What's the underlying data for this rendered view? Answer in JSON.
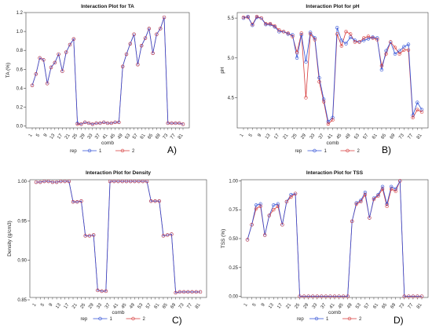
{
  "chart_data": [
    {
      "type": "line",
      "panel_label": "A)",
      "title": "Interaction Plot for TA",
      "xlabel": "comb",
      "ylabel": "TA (%)",
      "ylim": [
        -0.02,
        1.2
      ],
      "yticks": [
        "0.0",
        "0.2",
        "0.4",
        "0.6",
        "0.8",
        "1.0",
        "1.2"
      ],
      "ytick_values": [
        0.0,
        0.2,
        0.4,
        0.6,
        0.8,
        1.0,
        1.2
      ],
      "categories": [
        "1",
        "3",
        "5",
        "7",
        "9",
        "11",
        "13",
        "15",
        "17",
        "19",
        "21",
        "23",
        "25",
        "27",
        "29",
        "31",
        "33",
        "35",
        "37",
        "39",
        "41",
        "43",
        "45",
        "47",
        "49",
        "51",
        "53",
        "55",
        "57",
        "59",
        "61",
        "63",
        "65",
        "67",
        "69",
        "71",
        "73",
        "75",
        "77",
        "79",
        "81"
      ],
      "x_tick_labels": [
        "1",
        "5",
        "9",
        "13",
        "17",
        "21",
        "25",
        "29",
        "33",
        "37",
        "41",
        "45",
        "49",
        "53",
        "57",
        "61",
        "65",
        "69",
        "73",
        "77",
        "81"
      ],
      "grid": false,
      "legend": {
        "title": "rep",
        "placement": "bottom",
        "entries": [
          "1",
          "2"
        ]
      },
      "series": [
        {
          "name": "1",
          "color": "#2f4fd6",
          "values": [
            0.43,
            0.55,
            0.72,
            0.7,
            0.45,
            0.62,
            0.67,
            0.76,
            0.58,
            0.78,
            0.86,
            0.92,
            0.03,
            0.02,
            0.04,
            0.03,
            0.02,
            0.03,
            0.03,
            0.04,
            0.03,
            0.03,
            0.04,
            0.04,
            0.63,
            0.76,
            0.87,
            0.97,
            0.65,
            0.85,
            0.93,
            1.03,
            0.77,
            0.97,
            1.03,
            1.15,
            0.03,
            0.03,
            0.03,
            0.03,
            0.02
          ]
        },
        {
          "name": "2",
          "color": "#d63a3a",
          "values": [
            0.43,
            0.55,
            0.72,
            0.7,
            0.45,
            0.62,
            0.67,
            0.76,
            0.58,
            0.78,
            0.86,
            0.92,
            0.02,
            0.02,
            0.04,
            0.03,
            0.02,
            0.03,
            0.03,
            0.04,
            0.03,
            0.03,
            0.04,
            0.04,
            0.63,
            0.76,
            0.87,
            0.97,
            0.65,
            0.85,
            0.93,
            1.03,
            0.77,
            0.97,
            1.03,
            1.15,
            0.03,
            0.03,
            0.03,
            0.03,
            0.02
          ]
        }
      ]
    },
    {
      "type": "line",
      "panel_label": "B)",
      "title": "Interaction Plot for pH",
      "xlabel": "comb",
      "ylabel": "pH",
      "ylim": [
        4.12,
        5.57
      ],
      "yticks": [
        "4.5",
        "5.0",
        "5.5"
      ],
      "ytick_values": [
        4.5,
        5.0,
        5.5
      ],
      "categories": [
        "1",
        "3",
        "5",
        "7",
        "9",
        "11",
        "13",
        "15",
        "17",
        "19",
        "21",
        "23",
        "25",
        "27",
        "29",
        "31",
        "33",
        "35",
        "37",
        "39",
        "41",
        "43",
        "45",
        "47",
        "49",
        "51",
        "53",
        "55",
        "57",
        "59",
        "61",
        "63",
        "65",
        "67",
        "69",
        "71",
        "73",
        "75",
        "77",
        "79",
        "81"
      ],
      "x_tick_labels": [
        "1",
        "5",
        "9",
        "13",
        "17",
        "21",
        "25",
        "29",
        "33",
        "37",
        "41",
        "45",
        "49",
        "53",
        "57",
        "61",
        "65",
        "69",
        "73",
        "77",
        "81"
      ],
      "grid": false,
      "legend": {
        "title": "rep",
        "placement": "bottom",
        "entries": [
          "1",
          "2"
        ]
      },
      "series": [
        {
          "name": "1",
          "color": "#2f4fd6",
          "values": [
            5.5,
            5.52,
            5.41,
            5.51,
            5.5,
            5.42,
            5.42,
            5.39,
            5.33,
            5.33,
            5.3,
            5.29,
            5.0,
            5.29,
            4.95,
            5.32,
            5.25,
            4.75,
            4.48,
            4.2,
            4.25,
            5.38,
            5.22,
            5.18,
            5.26,
            5.22,
            5.2,
            5.22,
            5.24,
            5.26,
            5.25,
            4.85,
            5.09,
            5.2,
            5.05,
            5.09,
            5.14,
            5.17,
            4.28,
            4.44,
            4.35
          ]
        },
        {
          "name": "2",
          "color": "#d63a3a",
          "values": [
            5.51,
            5.51,
            5.42,
            5.52,
            5.5,
            5.43,
            5.43,
            5.4,
            5.35,
            5.33,
            5.31,
            5.27,
            5.07,
            5.31,
            4.5,
            5.3,
            5.23,
            4.7,
            4.45,
            4.17,
            4.22,
            5.3,
            5.15,
            5.33,
            5.3,
            5.2,
            5.2,
            5.25,
            5.27,
            5.25,
            5.23,
            4.9,
            5.05,
            5.2,
            5.13,
            5.05,
            5.1,
            5.1,
            4.25,
            4.35,
            4.32
          ]
        }
      ]
    },
    {
      "type": "line",
      "panel_label": "C)",
      "title": "Interaction Plot for Density",
      "xlabel": "comb",
      "ylabel": "Density  (g/cm3)",
      "ylim": [
        0.853,
        1.002
      ],
      "yticks": [
        "0.85",
        "0.90",
        "0.95",
        "1.00"
      ],
      "ytick_values": [
        0.85,
        0.9,
        0.95,
        1.0
      ],
      "categories": [
        "1",
        "3",
        "5",
        "7",
        "9",
        "11",
        "13",
        "15",
        "17",
        "19",
        "21",
        "23",
        "25",
        "27",
        "29",
        "31",
        "33",
        "35",
        "37",
        "39",
        "41",
        "43",
        "45",
        "47",
        "49",
        "51",
        "53",
        "55",
        "57",
        "59",
        "61",
        "63",
        "65",
        "67",
        "69",
        "71",
        "73",
        "75",
        "77",
        "79",
        "81"
      ],
      "x_tick_labels": [
        "1",
        "5",
        "9",
        "13",
        "17",
        "21",
        "25",
        "29",
        "33",
        "37",
        "41",
        "45",
        "49",
        "53",
        "57",
        "61",
        "65",
        "69",
        "73",
        "77",
        "81"
      ],
      "grid": false,
      "legend": {
        "title": "rep",
        "placement": "bottom",
        "entries": [
          "1",
          "2"
        ]
      },
      "series": [
        {
          "name": "1",
          "color": "#2f4fd6",
          "values": [
            0.999,
            0.999,
            1.0,
            1.0,
            0.999,
            0.999,
            1.0,
            1.0,
            1.0,
            0.974,
            0.974,
            0.975,
            0.931,
            0.931,
            0.932,
            0.862,
            0.861,
            0.861,
            1.0,
            1.0,
            1.0,
            1.0,
            1.0,
            1.0,
            1.0,
            1.0,
            1.0,
            1.0,
            0.975,
            0.975,
            0.975,
            0.931,
            0.932,
            0.933,
            0.859,
            0.86,
            0.86,
            0.86,
            0.86,
            0.86,
            0.86
          ]
        },
        {
          "name": "2",
          "color": "#d63a3a",
          "values": [
            0.999,
            0.999,
            1.0,
            1.0,
            0.999,
            0.999,
            1.0,
            1.0,
            1.0,
            0.974,
            0.974,
            0.975,
            0.931,
            0.931,
            0.932,
            0.862,
            0.861,
            0.861,
            1.0,
            1.0,
            1.0,
            1.0,
            1.0,
            1.0,
            1.0,
            1.0,
            1.0,
            1.0,
            0.975,
            0.975,
            0.975,
            0.931,
            0.932,
            0.933,
            0.859,
            0.86,
            0.86,
            0.86,
            0.86,
            0.86,
            0.86
          ]
        }
      ]
    },
    {
      "type": "line",
      "panel_label": "D)",
      "title": "Interaction Plot for TSS",
      "xlabel": "comb",
      "ylabel": "TSS  (%)",
      "ylim": [
        -0.01,
        1.01
      ],
      "yticks": [
        "0.00",
        "0.25",
        "0.50",
        "0.75",
        "1.00"
      ],
      "ytick_values": [
        0.0,
        0.25,
        0.5,
        0.75,
        1.0
      ],
      "categories": [
        "1",
        "3",
        "5",
        "7",
        "9",
        "11",
        "13",
        "15",
        "17",
        "19",
        "21",
        "23",
        "25",
        "27",
        "29",
        "31",
        "33",
        "35",
        "37",
        "39",
        "41",
        "43",
        "45",
        "47",
        "49",
        "51",
        "53",
        "55",
        "57",
        "59",
        "61",
        "63",
        "65",
        "67",
        "69",
        "71",
        "73",
        "75",
        "77",
        "79",
        "81"
      ],
      "x_tick_labels": [
        "1",
        "5",
        "9",
        "13",
        "17",
        "21",
        "25",
        "29",
        "33",
        "37",
        "41",
        "45",
        "49",
        "53",
        "57",
        "61",
        "65",
        "69",
        "73",
        "77",
        "81"
      ],
      "grid": false,
      "legend": {
        "title": "rep",
        "placement": "bottom",
        "entries": [
          "1",
          "2"
        ]
      },
      "series": [
        {
          "name": "1",
          "color": "#2f4fd6",
          "values": [
            0.49,
            0.62,
            0.79,
            0.8,
            0.53,
            0.7,
            0.79,
            0.8,
            0.62,
            0.82,
            0.88,
            0.89,
            0.0,
            0.0,
            0.0,
            0.0,
            0.0,
            0.0,
            0.0,
            0.0,
            0.0,
            0.0,
            0.0,
            0.0,
            0.65,
            0.81,
            0.83,
            0.9,
            0.68,
            0.85,
            0.88,
            0.95,
            0.8,
            0.95,
            0.93,
            1.0,
            0.0,
            0.0,
            0.0,
            0.0,
            0.0
          ]
        },
        {
          "name": "2",
          "color": "#d63a3a",
          "values": [
            0.49,
            0.62,
            0.76,
            0.78,
            0.53,
            0.7,
            0.75,
            0.78,
            0.62,
            0.82,
            0.86,
            0.89,
            0.0,
            0.0,
            0.0,
            0.0,
            0.0,
            0.0,
            0.0,
            0.0,
            0.0,
            0.0,
            0.0,
            0.0,
            0.65,
            0.8,
            0.82,
            0.88,
            0.68,
            0.84,
            0.87,
            0.93,
            0.78,
            0.93,
            0.91,
            1.0,
            0.0,
            0.0,
            0.0,
            0.0,
            0.0
          ]
        }
      ]
    }
  ]
}
